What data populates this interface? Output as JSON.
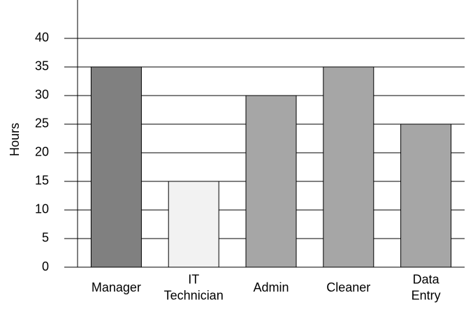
{
  "chart_data": {
    "type": "bar",
    "y_label": "Hours",
    "categories": [
      "Manager",
      "IT Technician",
      "Admin",
      "Cleaner",
      "Data Entry"
    ],
    "values": [
      35,
      15,
      30,
      35,
      25
    ],
    "colors": [
      "#808080",
      "#f2f2f2",
      "#a6a6a6",
      "#a6a6a6",
      "#a6a6a6"
    ],
    "ylim": [
      0,
      46.7
    ],
    "yticks": [
      0,
      5,
      10,
      15,
      20,
      25,
      30,
      35,
      40
    ],
    "grid": true
  }
}
